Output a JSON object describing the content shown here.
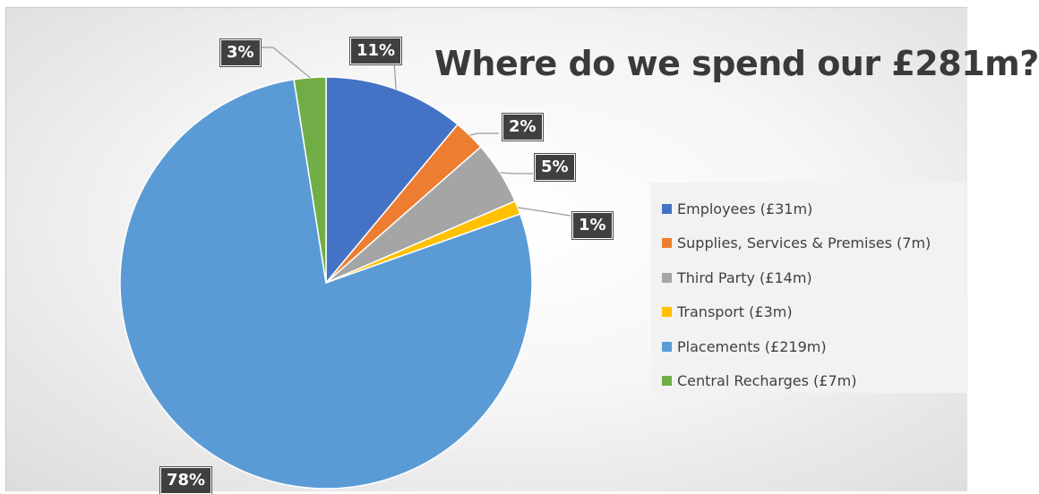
{
  "chart_data": {
    "type": "pie",
    "title": "Where do we spend our £281m?",
    "total_label": "£281m",
    "categories": [
      "Employees (£31m)",
      "Supplies, Services & Premises (7m)",
      "Third Party (£14m)",
      "Transport (£3m)",
      "Placements (£219m)",
      "Central Recharges (£7m)"
    ],
    "values": [
      31,
      7,
      14,
      3,
      219,
      7
    ],
    "percent_labels": [
      "11%",
      "2%",
      "5%",
      "1%",
      "78%",
      "3%"
    ],
    "colors": [
      "#4472C4",
      "#ED7D31",
      "#A5A5A5",
      "#FFC000",
      "#5B9BD5",
      "#70AD47"
    ],
    "legend_position": "right",
    "start_angle_deg": 0,
    "direction": "clockwise"
  }
}
